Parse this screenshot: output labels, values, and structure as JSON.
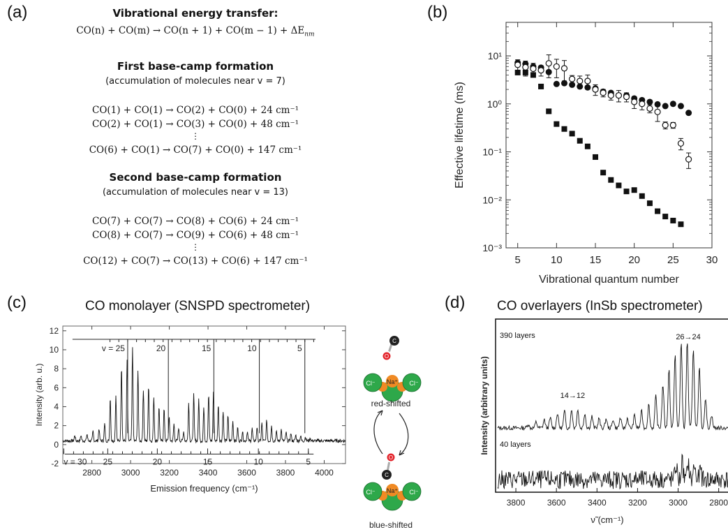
{
  "panel_a": {
    "label": "(a)",
    "heading1": "Vibrational energy transfer:",
    "general_eq": "CO(n) + CO(m) → CO(n + 1) + CO(m − 1) + ΔE",
    "general_eq_sub": "nm",
    "heading2": "First base-camp formation",
    "note2": "(accumulation of molecules near v = 7)",
    "eqs1": [
      "CO(1) + CO(1) → CO(2) + CO(0) + 24 cm⁻¹",
      "CO(2) + CO(1) → CO(3) + CO(0) + 48 cm⁻¹",
      "⋮",
      "CO(6) + CO(1) → CO(7) + CO(0) + 147 cm⁻¹"
    ],
    "heading3": "Second base-camp formation",
    "note3": "(accumulation of molecules near v = 13)",
    "eqs2": [
      "CO(7) + CO(7) → CO(8) + CO(6) + 24 cm⁻¹",
      "CO(8) + CO(7) → CO(9) + CO(6) + 48 cm⁻¹",
      "⋮",
      "CO(12) + CO(7) → CO(13) + CO(6) + 147 cm⁻¹"
    ]
  },
  "panel_b": {
    "label": "(b)"
  },
  "panel_c": {
    "label": "(c)",
    "title": "CO monolayer (SNSPD spectrometer)",
    "top_scale": [
      "v = 25",
      "20",
      "15",
      "10",
      "5"
    ],
    "bottom_scale": [
      "v = 30",
      "25",
      "20",
      "15",
      "10",
      "5"
    ],
    "diagram": {
      "red_label": "red-shifted",
      "blue_label": "blue-shifted",
      "na": "Na⁺",
      "cl": "Cl⁻",
      "o": "O",
      "c": "C",
      "colors": {
        "cl": "#2ea84a",
        "na": "#f08a24",
        "o": "#e3242b",
        "c": "#222222"
      }
    }
  },
  "panel_d": {
    "label": "(d)",
    "title": "CO overlayers (InSb spectrometer)",
    "trace1_label": "390 layers",
    "trace2_label": "40 layers",
    "annot1": "14→12",
    "annot2": "26→24"
  },
  "chart_data": [
    {
      "panel": "b",
      "type": "scatter",
      "xlabel": "Vibrational quantum number",
      "ylabel": "Effective lifetime (ms)",
      "xlim": [
        3.5,
        30
      ],
      "ylim": [
        0.001,
        50
      ],
      "yscale": "log",
      "xticks": [
        5,
        10,
        15,
        20,
        25,
        30
      ],
      "yticks": [
        {
          "v": 0.001,
          "t": "10⁻³"
        },
        {
          "v": 0.01,
          "t": "10⁻²"
        },
        {
          "v": 0.1,
          "t": "10⁻¹"
        },
        {
          "v": 1,
          "t": "10⁰"
        },
        {
          "v": 10,
          "t": "10¹"
        }
      ],
      "series": [
        {
          "marker": "filled-circle",
          "x": [
            5,
            6,
            7,
            8,
            9,
            10,
            11,
            12,
            13,
            14,
            15,
            16,
            17,
            18,
            19,
            20,
            21,
            22,
            23,
            24,
            25,
            26,
            27
          ],
          "y": [
            7.2,
            6.8,
            6.0,
            5.7,
            4.6,
            2.6,
            2.7,
            2.5,
            2.3,
            2.2,
            2.1,
            1.8,
            1.7,
            1.5,
            1.5,
            1.3,
            1.2,
            1.1,
            0.98,
            0.9,
            1.0,
            0.9,
            0.65
          ]
        },
        {
          "marker": "open-circle",
          "x": [
            5,
            6,
            7,
            8,
            9,
            10,
            11,
            12,
            13,
            14,
            15,
            16,
            17,
            18,
            19,
            20,
            21,
            22,
            23,
            24,
            25,
            26,
            27
          ],
          "y": [
            6.5,
            5.8,
            5.4,
            5.0,
            7.0,
            6.0,
            5.5,
            3.3,
            3.0,
            3.0,
            2.0,
            1.7,
            1.5,
            1.5,
            1.4,
            1.1,
            1.0,
            0.8,
            0.68,
            0.36,
            0.36,
            0.15,
            0.07
          ],
          "err": [
            1.8,
            2.0,
            1.6,
            1.2,
            3.5,
            2.5,
            2.5,
            0.6,
            0.8,
            1.0,
            0.5,
            0.3,
            0.3,
            0.4,
            0.3,
            0.3,
            0.25,
            0.15,
            0.25,
            0.06,
            0.05,
            0.04,
            0.025
          ]
        },
        {
          "marker": "filled-square",
          "x": [
            5,
            6,
            7,
            8,
            9,
            10,
            11,
            12,
            13,
            14,
            15,
            16,
            17,
            18,
            19,
            20,
            21,
            22,
            23,
            24,
            25,
            26
          ],
          "y": [
            4.5,
            4.5,
            4.0,
            2.3,
            0.7,
            0.38,
            0.3,
            0.24,
            0.17,
            0.13,
            0.078,
            0.037,
            0.026,
            0.02,
            0.015,
            0.016,
            0.012,
            0.0085,
            0.0058,
            0.0045,
            0.0037,
            0.0031
          ]
        }
      ]
    },
    {
      "panel": "c",
      "type": "line",
      "xlabel": "Emission frequency (cm⁻¹)",
      "ylabel": "Intensity (arb. u.)",
      "xlim": [
        2650,
        4110
      ],
      "ylim": [
        -2,
        12.5
      ],
      "xticks": [
        2800,
        3000,
        3200,
        3400,
        3600,
        3800,
        4000
      ],
      "yticks": [
        -2,
        0,
        2,
        4,
        6,
        8,
        10,
        12
      ],
      "baseline": 0.4,
      "peaks": [
        {
          "x": 2712,
          "h": 0.6
        },
        {
          "x": 2744,
          "h": 0.6
        },
        {
          "x": 2775,
          "h": 0.7
        },
        {
          "x": 2806,
          "h": 1.0
        },
        {
          "x": 2837,
          "h": 1.3
        },
        {
          "x": 2866,
          "h": 1.8
        },
        {
          "x": 2895,
          "h": 4.6
        },
        {
          "x": 2924,
          "h": 4.8
        },
        {
          "x": 2953,
          "h": 8.0
        },
        {
          "x": 2982,
          "h": 8.4
        },
        {
          "x": 3010,
          "h": 9.9
        },
        {
          "x": 3038,
          "h": 7.4
        },
        {
          "x": 3066,
          "h": 5.4
        },
        {
          "x": 3093,
          "h": 5.9
        },
        {
          "x": 3120,
          "h": 4.7
        },
        {
          "x": 3147,
          "h": 3.6
        },
        {
          "x": 3173,
          "h": 3.4
        },
        {
          "x": 3199,
          "h": 2.6
        },
        {
          "x": 3224,
          "h": 1.8
        },
        {
          "x": 3248,
          "h": 1.4
        },
        {
          "x": 3274,
          "h": 1.0
        },
        {
          "x": 3300,
          "h": 4.0
        },
        {
          "x": 3326,
          "h": 4.9
        },
        {
          "x": 3352,
          "h": 4.3
        },
        {
          "x": 3378,
          "h": 3.5
        },
        {
          "x": 3403,
          "h": 4.9
        },
        {
          "x": 3428,
          "h": 5.2
        },
        {
          "x": 3453,
          "h": 3.8
        },
        {
          "x": 3478,
          "h": 3.2
        },
        {
          "x": 3503,
          "h": 2.6
        },
        {
          "x": 3528,
          "h": 2.1
        },
        {
          "x": 3553,
          "h": 1.4
        },
        {
          "x": 3578,
          "h": 1.0
        },
        {
          "x": 3603,
          "h": 1.0
        },
        {
          "x": 3628,
          "h": 1.3
        },
        {
          "x": 3653,
          "h": 1.5
        },
        {
          "x": 3678,
          "h": 1.9
        },
        {
          "x": 3703,
          "h": 2.2
        },
        {
          "x": 3728,
          "h": 1.6
        },
        {
          "x": 3753,
          "h": 1.0
        },
        {
          "x": 3778,
          "h": 1.2
        },
        {
          "x": 3803,
          "h": 0.9
        },
        {
          "x": 3828,
          "h": 0.8
        },
        {
          "x": 3853,
          "h": 0.6
        },
        {
          "x": 3878,
          "h": 0.5
        },
        {
          "x": 3903,
          "h": 0.4
        },
        {
          "x": 3928,
          "h": 0.3
        }
      ],
      "top_scale_positions": [
        2985,
        3195,
        3430,
        3665,
        3900
      ],
      "bottom_scale_positions": [
        2655,
        2882,
        3138,
        3398,
        3660,
        3918
      ]
    },
    {
      "panel": "d",
      "type": "line",
      "xlabel": "ν̃ (cm⁻¹)",
      "ylabel": "Intensity (arbitrary units)",
      "xlim": [
        3900,
        2730
      ],
      "xticks": [
        3800,
        3600,
        3400,
        3200,
        3000,
        2800
      ],
      "series": [
        {
          "name": "390 layers",
          "peaks": [
            {
              "x": 3740,
              "h": 0.12
            },
            {
              "x": 3700,
              "h": 0.18
            },
            {
              "x": 3660,
              "h": 0.25
            },
            {
              "x": 3630,
              "h": 0.3
            },
            {
              "x": 3595,
              "h": 0.45
            },
            {
              "x": 3560,
              "h": 0.5
            },
            {
              "x": 3525,
              "h": 0.55
            },
            {
              "x": 3495,
              "h": 0.55
            },
            {
              "x": 3460,
              "h": 0.45
            },
            {
              "x": 3425,
              "h": 0.35
            },
            {
              "x": 3390,
              "h": 0.3
            },
            {
              "x": 3355,
              "h": 0.28
            },
            {
              "x": 3320,
              "h": 0.26
            },
            {
              "x": 3285,
              "h": 0.3
            },
            {
              "x": 3250,
              "h": 0.3
            },
            {
              "x": 3215,
              "h": 0.38
            },
            {
              "x": 3180,
              "h": 0.5
            },
            {
              "x": 3145,
              "h": 0.7
            },
            {
              "x": 3110,
              "h": 0.95
            },
            {
              "x": 3075,
              "h": 1.3
            },
            {
              "x": 3045,
              "h": 1.75
            },
            {
              "x": 3015,
              "h": 2.2
            },
            {
              "x": 2985,
              "h": 2.55
            },
            {
              "x": 2955,
              "h": 2.6
            },
            {
              "x": 2925,
              "h": 2.4
            },
            {
              "x": 2895,
              "h": 1.8
            },
            {
              "x": 2865,
              "h": 0.9
            },
            {
              "x": 2835,
              "h": 0.4
            }
          ]
        },
        {
          "name": "40 layers",
          "peaks": [
            {
              "x": 3010,
              "h": 0.45
            },
            {
              "x": 2980,
              "h": 0.55
            },
            {
              "x": 2950,
              "h": 0.5
            },
            {
              "x": 2920,
              "h": 0.45
            },
            {
              "x": 2890,
              "h": 0.3
            }
          ]
        }
      ]
    }
  ]
}
